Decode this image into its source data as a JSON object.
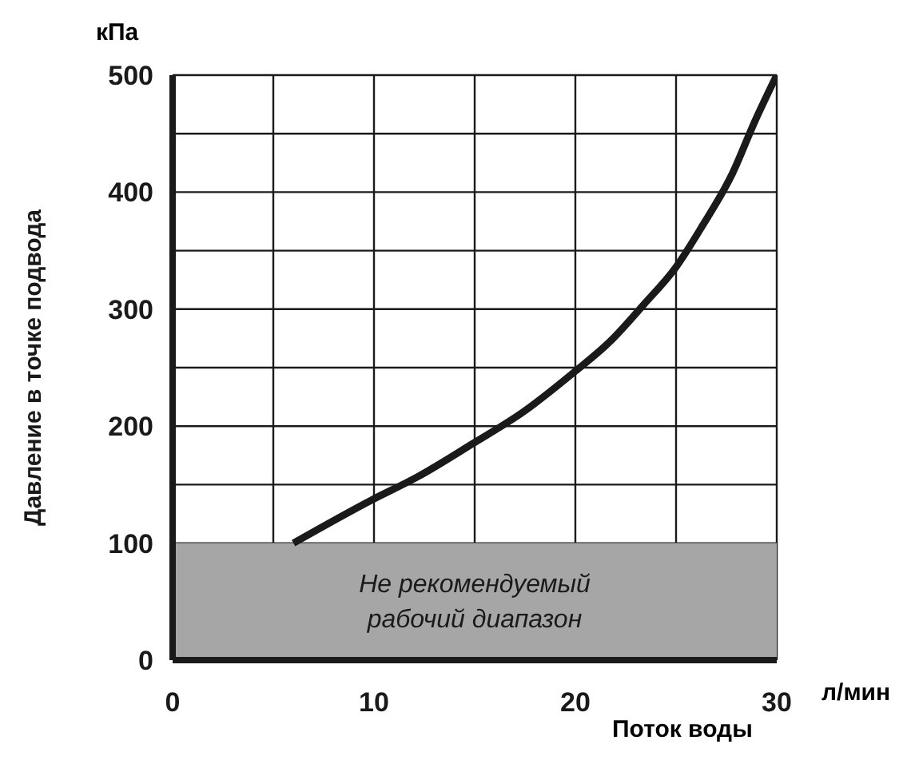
{
  "chart_data": {
    "type": "line",
    "xlabel": "Поток воды",
    "ylabel": "Давление в точке подвода",
    "annotations": [
      "кПа",
      "л/мин"
    ],
    "x": [
      6,
      9.9,
      12.2,
      14.9,
      17.4,
      20,
      21.7,
      23.4,
      25,
      26.3,
      27.8,
      28.9,
      30
    ],
    "series": [
      {
        "color": "#1a1a1a",
        "values": [
          100,
          137,
          157,
          185,
          212,
          247,
          272,
          304,
          336,
          371,
          416,
          460,
          500
        ]
      }
    ],
    "xlim": [
      0,
      30
    ],
    "xticks": [
      0,
      {
        "value": 5,
        "label": null
      },
      10,
      {
        "value": 15,
        "label": null
      },
      20,
      {
        "value": 25,
        "label": null
      },
      30
    ],
    "ylim": [
      0,
      500
    ],
    "yticks": [
      0,
      100,
      {
        "value": 150,
        "label": null
      },
      200,
      {
        "value": 250,
        "label": null
      },
      300,
      {
        "value": 350,
        "label": null
      },
      400,
      {
        "value": 450,
        "label": null
      },
      500
    ],
    "bands": [
      {
        "axis": "y",
        "from": 0,
        "to": 100,
        "label": "Не рекомендуемый\nрабочий диапазон",
        "color": "#a6a6a6"
      }
    ],
    "grid": true,
    "legend": false,
    "marker": "none",
    "line_style": "solid"
  }
}
